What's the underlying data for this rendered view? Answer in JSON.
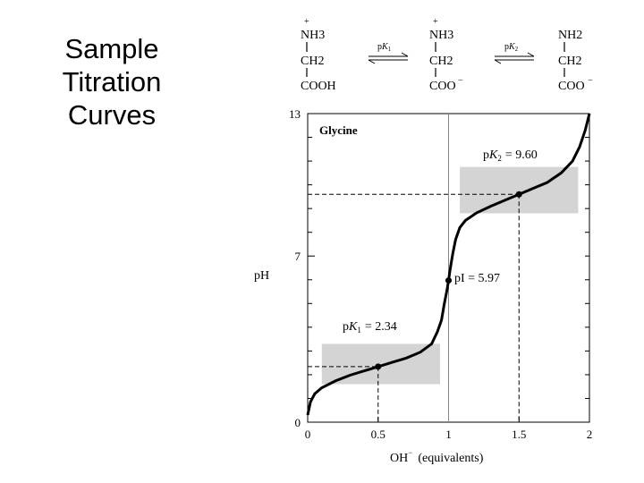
{
  "slide": {
    "title_lines": [
      "Sample",
      "Titration",
      "Curves"
    ]
  },
  "equilibrium": {
    "species": [
      {
        "amine": "NH3",
        "amine_charge": "+",
        "middle": "CH2",
        "acid": "COOH",
        "acid_charge": ""
      },
      {
        "amine": "NH3",
        "amine_charge": "+",
        "middle": "CH2",
        "acid": "COO",
        "acid_charge": "−"
      },
      {
        "amine": "NH2",
        "amine_charge": "",
        "middle": "CH2",
        "acid": "COO",
        "acid_charge": "−"
      }
    ],
    "arrow_labels": [
      {
        "p": "p",
        "K": "K",
        "sub": "1"
      },
      {
        "p": "p",
        "K": "K",
        "sub": "2"
      }
    ]
  },
  "chart_data": {
    "type": "line",
    "title": "Glycine",
    "xlabel": "OH⁻ (equivalents)",
    "xlabel_main": "OH",
    "xlabel_sup": "−",
    "xlabel_rest": "(equivalents)",
    "ylabel": "pH",
    "xlim": [
      0,
      2
    ],
    "ylim": [
      0,
      13
    ],
    "x_ticks": [
      "0",
      "0.5",
      "1",
      "1.5",
      "2"
    ],
    "y_ticks": [
      "0",
      "7",
      "13"
    ],
    "grid": false,
    "series": [
      {
        "name": "",
        "x": [
          0.0,
          0.02,
          0.05,
          0.1,
          0.2,
          0.3,
          0.4,
          0.5,
          0.6,
          0.7,
          0.8,
          0.88,
          0.92,
          0.95,
          0.97,
          0.99,
          1.0,
          1.01,
          1.03,
          1.05,
          1.08,
          1.12,
          1.2,
          1.3,
          1.4,
          1.5,
          1.6,
          1.7,
          1.8,
          1.88,
          1.93,
          1.97,
          2.0
        ],
        "y": [
          0.3,
          0.85,
          1.2,
          1.45,
          1.75,
          1.98,
          2.16,
          2.34,
          2.52,
          2.7,
          2.95,
          3.3,
          3.8,
          4.3,
          5.0,
          5.6,
          5.97,
          6.4,
          7.1,
          7.7,
          8.2,
          8.5,
          8.82,
          9.1,
          9.35,
          9.6,
          9.85,
          10.1,
          10.5,
          11.0,
          11.6,
          12.3,
          13.0
        ]
      }
    ],
    "points": [
      {
        "x": 0.5,
        "y": 2.34,
        "label_p": "p",
        "label_K": "K",
        "label_sub": "1",
        "label_value": "= 2.34"
      },
      {
        "x": 1.0,
        "y": 5.97,
        "label": "pI = 5.97"
      },
      {
        "x": 1.5,
        "y": 9.6,
        "label_p": "p",
        "label_K": "K",
        "label_sub": "2",
        "label_value": "= 9.60"
      }
    ],
    "buffer_regions": [
      {
        "x": [
          0.1,
          0.94
        ],
        "y": [
          1.6,
          3.3
        ]
      },
      {
        "x": [
          1.08,
          1.92
        ],
        "y": [
          8.8,
          10.75
        ]
      }
    ]
  }
}
